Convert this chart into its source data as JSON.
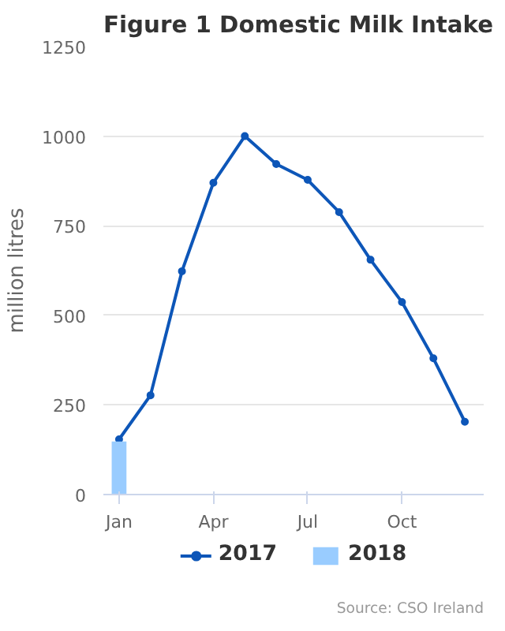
{
  "chart_data": {
    "type": "line",
    "title": "Figure 1 Domestic Milk Intake",
    "ylabel": "million litres",
    "categories": [
      "Jan",
      null,
      null,
      "Apr",
      null,
      null,
      "Jul",
      null,
      null,
      "Oct",
      null,
      null
    ],
    "series": [
      {
        "name": "2017",
        "color": "#0d56b8",
        "values": [
          154,
          277,
          623,
          870,
          1000,
          922,
          878,
          788,
          655,
          537,
          380,
          203
        ]
      },
      {
        "name": "2018",
        "type": "bar",
        "color": "#99ccff",
        "values": [
          148,
          null,
          null,
          null,
          null,
          null,
          null,
          null,
          null,
          null,
          null,
          null
        ]
      }
    ],
    "ylim": [
      0,
      1250
    ],
    "yticks": [
      0,
      250,
      500,
      750,
      1000,
      1250
    ],
    "grid": "y",
    "legend": "bottom",
    "marker": "circle",
    "line_style": "solid",
    "annotations": [
      "Source: CSO Ireland"
    ]
  }
}
